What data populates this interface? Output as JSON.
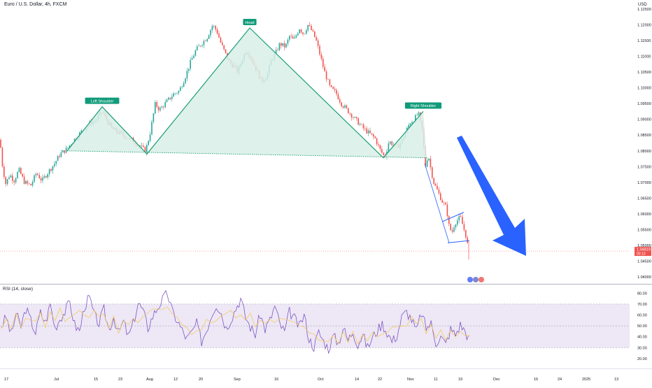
{
  "header": {
    "title": "Euro / U.S. Dollar, 4h, FXCM",
    "currency": "USD"
  },
  "rsi_panel": {
    "title": "RSI (14, close)"
  },
  "colors": {
    "up": "#26a69a",
    "down": "#ef5350",
    "pattern_fill": "#d8efe8",
    "pattern_line": "#1b9e77",
    "label_bg": "#109b7a",
    "arrow": "#2962ff",
    "channel": "#2962ff",
    "rsi_line": "#7e57c2",
    "rsi_band": "#ede7f6"
  },
  "chart_data": [
    {
      "type": "candlestick",
      "y_ticks": [
        "1.12500",
        "1.12000",
        "1.11500",
        "1.11000",
        "1.10500",
        "1.10000",
        "1.09500",
        "1.09000",
        "1.08500",
        "1.08000",
        "1.07500",
        "1.07000",
        "1.06500",
        "1.06000",
        "1.05500",
        "1.05000",
        "1.04500",
        "1.04000"
      ],
      "x_ticks": [
        "17",
        "Jul",
        "15",
        "23",
        "Aug",
        "12",
        "20",
        "Sep",
        "16",
        "Oct",
        "14",
        "22",
        "Nov",
        "11",
        "19",
        "Dec",
        "16",
        "24",
        "2025",
        "13"
      ],
      "ylim": [
        1.038,
        1.127
      ],
      "close_points": [
        [
          0,
          1.0835
        ],
        [
          3,
          1.076
        ],
        [
          8,
          1.0695
        ],
        [
          14,
          1.0725
        ],
        [
          20,
          1.0705
        ],
        [
          27,
          1.074
        ],
        [
          35,
          1.07
        ],
        [
          44,
          1.069
        ],
        [
          52,
          1.073
        ],
        [
          60,
          1.0705
        ],
        [
          68,
          1.073
        ],
        [
          78,
          1.076
        ],
        [
          86,
          1.079
        ],
        [
          95,
          1.0805
        ],
        [
          104,
          1.083
        ],
        [
          112,
          1.085
        ],
        [
          120,
          1.087
        ],
        [
          130,
          1.089
        ],
        [
          138,
          1.09
        ],
        [
          146,
          1.0925
        ],
        [
          152,
          1.09
        ],
        [
          160,
          1.087
        ],
        [
          168,
          1.086
        ],
        [
          176,
          1.085
        ],
        [
          184,
          1.084
        ],
        [
          192,
          1.083
        ],
        [
          200,
          1.0815
        ],
        [
          208,
          1.08
        ],
        [
          214,
          1.085
        ],
        [
          218,
          1.09
        ],
        [
          222,
          1.095
        ],
        [
          228,
          1.093
        ],
        [
          234,
          1.0945
        ],
        [
          240,
          1.096
        ],
        [
          248,
          1.098
        ],
        [
          256,
          1.099
        ],
        [
          264,
          1.103
        ],
        [
          272,
          1.108
        ],
        [
          280,
          1.112
        ],
        [
          288,
          1.114
        ],
        [
          296,
          1.116
        ],
        [
          304,
          1.12
        ],
        [
          310,
          1.118
        ],
        [
          316,
          1.114
        ],
        [
          322,
          1.111
        ],
        [
          328,
          1.108
        ],
        [
          334,
          1.107
        ],
        [
          340,
          1.105
        ],
        [
          346,
          1.109
        ],
        [
          352,
          1.112
        ],
        [
          358,
          1.11
        ],
        [
          366,
          1.106
        ],
        [
          374,
          1.102
        ],
        [
          382,
          1.104
        ],
        [
          388,
          1.109
        ],
        [
          394,
          1.111
        ],
        [
          400,
          1.114
        ],
        [
          408,
          1.113
        ],
        [
          414,
          1.1165
        ],
        [
          420,
          1.115
        ],
        [
          428,
          1.119
        ],
        [
          434,
          1.117
        ],
        [
          440,
          1.12
        ],
        [
          446,
          1.118
        ],
        [
          452,
          1.115
        ],
        [
          458,
          1.11
        ],
        [
          464,
          1.105
        ],
        [
          472,
          1.1
        ],
        [
          480,
          1.0985
        ],
        [
          488,
          1.095
        ],
        [
          496,
          1.093
        ],
        [
          504,
          1.091
        ],
        [
          512,
          1.089
        ],
        [
          520,
          1.087
        ],
        [
          528,
          1.0855
        ],
        [
          536,
          1.084
        ],
        [
          544,
          1.08
        ],
        [
          550,
          1.078
        ],
        [
          556,
          1.083
        ],
        [
          562,
          1.082
        ],
        [
          568,
          1.081
        ],
        [
          574,
          1.083
        ],
        [
          580,
          1.086
        ],
        [
          586,
          1.089
        ],
        [
          592,
          1.09
        ],
        [
          598,
          1.092
        ],
        [
          604,
          1.086
        ],
        [
          608,
          1.075
        ],
        [
          612,
          1.079
        ],
        [
          616,
          1.074
        ],
        [
          620,
          1.07
        ],
        [
          626,
          1.067
        ],
        [
          632,
          1.064
        ],
        [
          638,
          1.062
        ],
        [
          642,
          1.056
        ],
        [
          646,
          1.054
        ],
        [
          650,
          1.057
        ],
        [
          654,
          1.058
        ],
        [
          658,
          1.059
        ],
        [
          662,
          1.056
        ],
        [
          666,
          1.053
        ],
        [
          670,
          1.0482
        ]
      ],
      "current_price": "1.04819",
      "countdown": "00:10",
      "annotations": [
        "Left Shoulder",
        "Head",
        "Right Shoulder"
      ]
    },
    {
      "type": "line",
      "series": [
        {
          "values": [
            50,
            58,
            42,
            61,
            49,
            66,
            55,
            44,
            62,
            53,
            70,
            48,
            57,
            63,
            72,
            51,
            45,
            68,
            76,
            60,
            52,
            65,
            47,
            58,
            43,
            54,
            40,
            52,
            71,
            64,
            48,
            59,
            67,
            74,
            80,
            63,
            55,
            46,
            38,
            44,
            52,
            36,
            46,
            60,
            70,
            62,
            48,
            56,
            66,
            75,
            58,
            49,
            42,
            61,
            47,
            55,
            68,
            52,
            44,
            63,
            57,
            49,
            60,
            38,
            31,
            44,
            36,
            29,
            41,
            34,
            48,
            37,
            45,
            33,
            42,
            30,
            39,
            46,
            52,
            44,
            36,
            41,
            58,
            63,
            56,
            45,
            62,
            48,
            52,
            35,
            40,
            33,
            47,
            42,
            51,
            45,
            36
          ]
        }
      ],
      "y_ticks": [
        "80.00",
        "70.00",
        "60.00",
        "50.00",
        "40.00",
        "30.00",
        "20.00"
      ],
      "ylim": [
        18,
        86
      ],
      "bands": [
        30,
        70
      ]
    }
  ]
}
